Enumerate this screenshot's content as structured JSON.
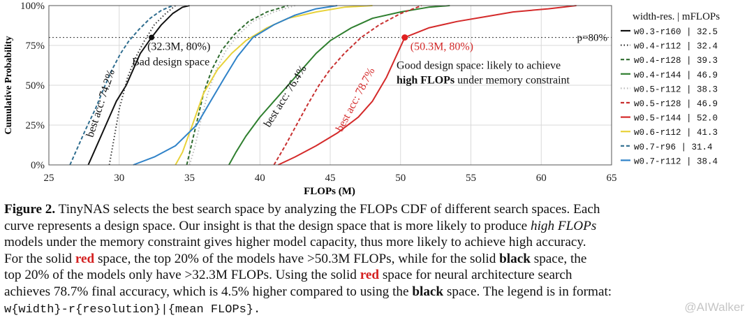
{
  "chart_data": {
    "type": "line",
    "xlabel": "FLOPs (M)",
    "ylabel": "Cumulative Probability",
    "xlim": [
      25,
      65
    ],
    "ylim": [
      0,
      100
    ],
    "x_ticks": [
      "25",
      "30",
      "35",
      "40",
      "45",
      "50",
      "55",
      "60",
      "65"
    ],
    "y_ticks": [
      "0%",
      "25%",
      "50%",
      "75%",
      "100%"
    ],
    "grid": true,
    "legend_position": "right",
    "legend_title": "width-res. | mFLOPs",
    "reference_line": {
      "y": 80,
      "label": "p=80%"
    },
    "series": [
      {
        "name": "w0.3-r160 | 32.5",
        "color": "#111111",
        "style": "solid",
        "points": [
          [
            27.8,
            0
          ],
          [
            28.2,
            8
          ],
          [
            28.8,
            20
          ],
          [
            29.3,
            30
          ],
          [
            29.8,
            40
          ],
          [
            30.5,
            50
          ],
          [
            31.0,
            60
          ],
          [
            31.5,
            70
          ],
          [
            32.3,
            80
          ],
          [
            33.0,
            88
          ],
          [
            33.8,
            95
          ],
          [
            34.5,
            99
          ],
          [
            35.0,
            100
          ]
        ]
      },
      {
        "name": "w0.4-r112 | 32.4",
        "color": "#333333",
        "style": "dotted",
        "points": [
          [
            29.3,
            0
          ],
          [
            29.6,
            15
          ],
          [
            30.0,
            35
          ],
          [
            30.6,
            55
          ],
          [
            31.2,
            68
          ],
          [
            31.8,
            78
          ],
          [
            32.5,
            88
          ],
          [
            33.3,
            95
          ],
          [
            34.0,
            100
          ]
        ]
      },
      {
        "name": "w0.4-r128 | 39.3",
        "color": "#2e6b2e",
        "style": "dashed",
        "points": [
          [
            34.8,
            0
          ],
          [
            35.2,
            15
          ],
          [
            35.6,
            30
          ],
          [
            36.0,
            45
          ],
          [
            36.6,
            60
          ],
          [
            37.3,
            72
          ],
          [
            38.2,
            82
          ],
          [
            39.2,
            90
          ],
          [
            40.5,
            96
          ],
          [
            42.0,
            100
          ]
        ]
      },
      {
        "name": "w0.4-r144 | 46.9",
        "color": "#2f7f2f",
        "style": "solid",
        "points": [
          [
            37.8,
            0
          ],
          [
            38.3,
            8
          ],
          [
            39.0,
            18
          ],
          [
            40.0,
            30
          ],
          [
            41.0,
            40
          ],
          [
            42.0,
            50
          ],
          [
            43.0,
            60
          ],
          [
            44.0,
            70
          ],
          [
            45.0,
            78
          ],
          [
            46.5,
            86
          ],
          [
            48.0,
            92
          ],
          [
            50.0,
            96
          ],
          [
            52.0,
            99
          ],
          [
            53.5,
            100
          ]
        ]
      },
      {
        "name": "w0.5-r112 | 38.3",
        "color": "#bbbbbb",
        "style": "dotted",
        "points": [
          [
            35.0,
            0
          ],
          [
            35.4,
            12
          ],
          [
            35.8,
            28
          ],
          [
            36.3,
            45
          ],
          [
            36.9,
            60
          ],
          [
            37.6,
            72
          ],
          [
            38.5,
            82
          ],
          [
            39.5,
            90
          ],
          [
            41.0,
            96
          ],
          [
            42.5,
            100
          ]
        ]
      },
      {
        "name": "w0.5-r128 | 46.9",
        "color": "#c83030",
        "style": "dashed",
        "points": [
          [
            41.0,
            0
          ],
          [
            41.8,
            12
          ],
          [
            42.6,
            25
          ],
          [
            43.4,
            38
          ],
          [
            44.2,
            50
          ],
          [
            45.0,
            60
          ],
          [
            46.0,
            70
          ],
          [
            47.2,
            80
          ],
          [
            48.5,
            88
          ],
          [
            50.0,
            95
          ],
          [
            51.5,
            100
          ]
        ]
      },
      {
        "name": "w0.5-r144 | 52.0",
        "color": "#d42a2a",
        "style": "solid",
        "points": [
          [
            41.3,
            0
          ],
          [
            42.5,
            5
          ],
          [
            44.0,
            12
          ],
          [
            45.5,
            20
          ],
          [
            47.0,
            30
          ],
          [
            48.0,
            40
          ],
          [
            49.0,
            55
          ],
          [
            50.3,
            80
          ],
          [
            52.0,
            86
          ],
          [
            54.0,
            90
          ],
          [
            56.0,
            93
          ],
          [
            58.0,
            96
          ],
          [
            60.5,
            98
          ],
          [
            62.5,
            100
          ]
        ]
      },
      {
        "name": "w0.6-r112 | 41.3",
        "color": "#e8d23a",
        "style": "solid",
        "points": [
          [
            34.0,
            0
          ],
          [
            34.5,
            8
          ],
          [
            35.2,
            25
          ],
          [
            36.0,
            45
          ],
          [
            37.0,
            60
          ],
          [
            38.0,
            70
          ],
          [
            39.0,
            78
          ],
          [
            40.5,
            86
          ],
          [
            42.0,
            92
          ],
          [
            44.0,
            96
          ],
          [
            46.0,
            99
          ],
          [
            48.0,
            100
          ]
        ]
      },
      {
        "name": "w0.7-r96 | 31.4",
        "color": "#2f6d8f",
        "style": "dashed",
        "points": [
          [
            26.5,
            0
          ],
          [
            27.0,
            10
          ],
          [
            27.6,
            22
          ],
          [
            28.3,
            35
          ],
          [
            28.9,
            48
          ],
          [
            29.5,
            60
          ],
          [
            30.1,
            70
          ],
          [
            30.7,
            78
          ],
          [
            31.4,
            85
          ],
          [
            32.2,
            92
          ],
          [
            33.0,
            97
          ],
          [
            33.8,
            100
          ]
        ]
      },
      {
        "name": "w0.7-r112 | 38.4",
        "color": "#2f82c8",
        "style": "solid",
        "points": [
          [
            31.0,
            0
          ],
          [
            32.5,
            5
          ],
          [
            34.0,
            12
          ],
          [
            35.5,
            25
          ],
          [
            36.5,
            40
          ],
          [
            37.5,
            55
          ],
          [
            38.4,
            68
          ],
          [
            39.5,
            80
          ],
          [
            41.0,
            88
          ],
          [
            42.5,
            94
          ],
          [
            44.0,
            98
          ],
          [
            45.5,
            100
          ]
        ]
      }
    ],
    "annotations": [
      {
        "text": "(32.3M, 80%)",
        "x": 32.3,
        "y": 80,
        "color": "#111111"
      },
      {
        "text": "Bad design space",
        "x": 32.3,
        "y": 80,
        "color": "#111111"
      },
      {
        "text": "(50.3M, 80%)",
        "x": 50.3,
        "y": 80,
        "color": "#d42a2a"
      },
      {
        "text": "Good design space: likely to achieve",
        "x": 50.3,
        "y": 80,
        "color": "#111111"
      },
      {
        "text": "high FLOPs under memory constraint",
        "x": 50.3,
        "y": 80,
        "color": "#111111"
      },
      {
        "text": "best acc: 74.2%",
        "x": 29.0,
        "y": 38,
        "color": "#111111"
      },
      {
        "text": "best acc: 76.4%",
        "x": 42.0,
        "y": 42,
        "color": "#111111"
      },
      {
        "text": "best acc: 78.7%",
        "x": 47.0,
        "y": 40,
        "color": "#d42a2a"
      }
    ]
  },
  "caption": {
    "line1_label": "Figure 2.",
    "line1_text": " TinyNAS selects the best search space by analyzing the FLOPs CDF of different search spaces. Each",
    "line2_text": "curve represents a design space. Our insight is that the design space that is more likely to produce ",
    "line2_ital": "high FLOPs",
    "line3_text": "models under the memory constraint gives higher model capacity, thus more likely to achieve high accuracy.",
    "line4_a": "For the solid ",
    "line4_red": "red",
    "line4_b": " space, the top 20% of the models have >50.3M FLOPs, while for the solid ",
    "line4_black": "black",
    "line4_c": " space, the",
    "line5_a": "top 20% of the models only have >32.3M FLOPs.  Using the solid ",
    "line5_red": "red",
    "line5_b": " space for neural architecture search",
    "line6_a": "achieves 78.7% final accuracy, which is 4.5% higher compared to using the ",
    "line6_black": "black",
    "line6_b": " space. The legend is in format:",
    "line7_mono": "w{width}-r{resolution}|{mean FLOPs}."
  },
  "watermark": "@AIWalker"
}
